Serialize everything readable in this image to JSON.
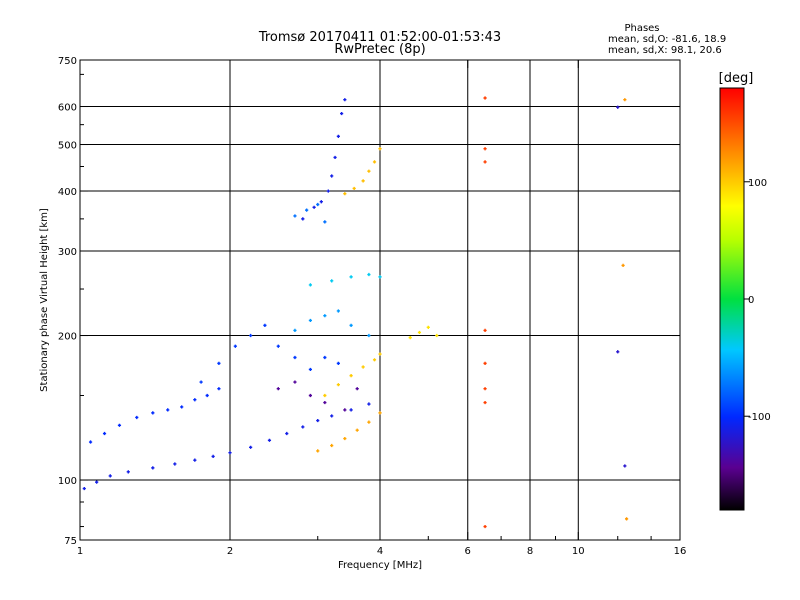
{
  "header": {
    "title_line1": "Tromsø 20170411 01:52:00-01:53:43",
    "title_line2": "RwPretec (8p)",
    "phases_title": "Phases",
    "phases_o": "mean, sd,O: -81.6, 18.9",
    "phases_x": "mean, sd,X:  98.1, 20.6"
  },
  "colorbar": {
    "unit_label": "[deg]",
    "ticks": [
      {
        "value": 100,
        "label": "100"
      },
      {
        "value": 0,
        "label": "0"
      },
      {
        "value": -100,
        "label": "-100"
      }
    ],
    "range": [
      -180,
      180
    ],
    "palette": "rainbow"
  },
  "chart_data": {
    "type": "scatter",
    "x_scale": "log",
    "y_scale": "log",
    "xlim": [
      1,
      16
    ],
    "ylim": [
      75,
      750
    ],
    "xlabel": "Frequency [MHz]",
    "ylabel": "Stationary phase Virtual Height [km]",
    "x_ticks": [
      {
        "value": 1,
        "label": "1"
      },
      {
        "value": 2,
        "label": "2"
      },
      {
        "value": 4,
        "label": "4"
      },
      {
        "value": 6,
        "label": "6"
      },
      {
        "value": 8,
        "label": "8"
      },
      {
        "value": 10,
        "label": "10"
      },
      {
        "value": 16,
        "label": "16"
      }
    ],
    "y_ticks": [
      {
        "value": 75,
        "label": "75"
      },
      {
        "value": 100,
        "label": "100"
      },
      {
        "value": 200,
        "label": "200"
      },
      {
        "value": 300,
        "label": "300"
      },
      {
        "value": 400,
        "label": "400"
      },
      {
        "value": 500,
        "label": "500"
      },
      {
        "value": 600,
        "label": "600"
      },
      {
        "value": 750,
        "label": "750"
      }
    ],
    "grid": true,
    "x_grid": [
      2,
      4,
      6,
      8,
      10
    ],
    "y_grid": [
      100,
      200,
      300,
      400,
      500,
      600
    ],
    "color_by": "phase_deg",
    "clusters": [
      {
        "name": "",
        "points": [
          [
            1.02,
            96
          ],
          [
            1.08,
            99
          ],
          [
            1.15,
            102
          ],
          [
            1.25,
            104
          ],
          [
            1.4,
            106
          ],
          [
            1.55,
            108
          ],
          [
            1.7,
            110
          ],
          [
            1.85,
            112
          ],
          [
            2.0,
            114
          ],
          [
            2.2,
            117
          ],
          [
            2.4,
            121
          ],
          [
            2.6,
            125
          ],
          [
            2.8,
            129
          ],
          [
            3.0,
            133
          ],
          [
            3.2,
            136
          ],
          [
            3.5,
            140
          ],
          [
            3.8,
            144
          ]
        ],
        "phase": -110
      },
      {
        "name": "",
        "points": [
          [
            1.05,
            120
          ],
          [
            1.12,
            125
          ],
          [
            1.2,
            130
          ],
          [
            1.3,
            135
          ],
          [
            1.4,
            138
          ],
          [
            1.5,
            140
          ],
          [
            1.6,
            142
          ],
          [
            1.7,
            147
          ],
          [
            1.8,
            150
          ],
          [
            1.9,
            155
          ]
        ],
        "phase": -100
      },
      {
        "name": "",
        "points": [
          [
            1.75,
            160
          ],
          [
            1.9,
            175
          ],
          [
            2.05,
            190
          ],
          [
            2.2,
            200
          ],
          [
            2.35,
            210
          ],
          [
            2.5,
            190
          ],
          [
            2.7,
            180
          ],
          [
            2.9,
            170
          ],
          [
            3.1,
            180
          ],
          [
            3.3,
            175
          ]
        ],
        "phase": -95
      },
      {
        "name": "",
        "points": [
          [
            2.5,
            155
          ],
          [
            2.7,
            160
          ],
          [
            2.9,
            150
          ],
          [
            3.1,
            145
          ],
          [
            3.4,
            140
          ],
          [
            3.6,
            155
          ]
        ],
        "phase": -140
      },
      {
        "name": "",
        "points": [
          [
            2.7,
            205
          ],
          [
            2.9,
            215
          ],
          [
            3.1,
            220
          ],
          [
            3.3,
            225
          ],
          [
            3.5,
            210
          ],
          [
            3.8,
            200
          ]
        ],
        "phase": -60
      },
      {
        "name": "",
        "points": [
          [
            2.9,
            255
          ],
          [
            3.2,
            260
          ],
          [
            3.5,
            265
          ],
          [
            3.8,
            268
          ],
          [
            4.0,
            265
          ]
        ],
        "phase": -40
      },
      {
        "name": "",
        "points": [
          [
            2.8,
            350
          ],
          [
            2.95,
            370
          ],
          [
            3.05,
            380
          ],
          [
            3.15,
            400
          ],
          [
            3.2,
            430
          ],
          [
            3.25,
            470
          ],
          [
            3.3,
            520
          ],
          [
            3.35,
            580
          ],
          [
            3.4,
            620
          ]
        ],
        "phase": -110
      },
      {
        "name": "",
        "points": [
          [
            2.7,
            355
          ],
          [
            2.85,
            365
          ],
          [
            3.0,
            375
          ],
          [
            3.1,
            345
          ]
        ],
        "phase": -75
      },
      {
        "name": "",
        "points": [
          [
            3.4,
            395
          ],
          [
            3.55,
            405
          ],
          [
            3.7,
            420
          ],
          [
            3.8,
            440
          ],
          [
            3.9,
            460
          ],
          [
            4.0,
            490
          ]
        ],
        "phase": 105
      },
      {
        "name": "",
        "points": [
          [
            3.0,
            115
          ],
          [
            3.2,
            118
          ],
          [
            3.4,
            122
          ],
          [
            3.6,
            127
          ],
          [
            3.8,
            132
          ],
          [
            4.0,
            138
          ]
        ],
        "phase": 115
      },
      {
        "name": "",
        "points": [
          [
            3.1,
            150
          ],
          [
            3.3,
            158
          ],
          [
            3.5,
            165
          ],
          [
            3.7,
            172
          ],
          [
            3.9,
            178
          ],
          [
            4.0,
            183
          ]
        ],
        "phase": 100
      },
      {
        "name": "",
        "points": [
          [
            4.6,
            198
          ],
          [
            4.8,
            203
          ],
          [
            5.0,
            208
          ],
          [
            5.2,
            200
          ]
        ],
        "phase": 90
      },
      {
        "name": "",
        "points": [
          [
            6.5,
            625
          ],
          [
            6.5,
            490
          ],
          [
            6.5,
            460
          ],
          [
            6.5,
            205
          ],
          [
            6.5,
            175
          ],
          [
            6.5,
            155
          ],
          [
            6.5,
            145
          ],
          [
            6.5,
            80
          ]
        ],
        "phase": 155
      },
      {
        "name": "",
        "points": [
          [
            12.4,
            620
          ],
          [
            12.3,
            280
          ],
          [
            12.5,
            83
          ]
        ],
        "phase": 120
      },
      {
        "name": "",
        "points": [
          [
            12.0,
            598
          ],
          [
            12.0,
            185
          ],
          [
            12.4,
            107
          ]
        ],
        "phase": -120
      }
    ]
  }
}
